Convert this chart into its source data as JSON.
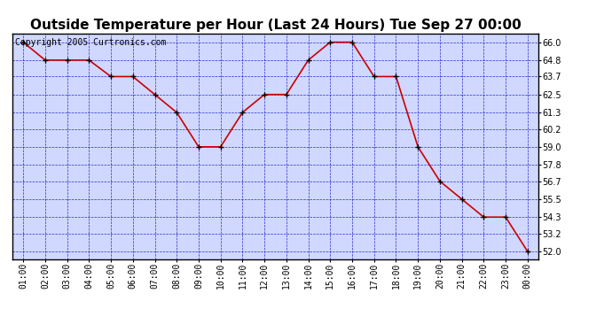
{
  "title": "Outside Temperature per Hour (Last 24 Hours) Tue Sep 27 00:00",
  "copyright": "Copyright 2005 Curtronics.com",
  "x_labels": [
    "01:00",
    "02:00",
    "03:00",
    "04:00",
    "05:00",
    "06:00",
    "07:00",
    "08:00",
    "09:00",
    "10:00",
    "11:00",
    "12:00",
    "13:00",
    "14:00",
    "15:00",
    "16:00",
    "17:00",
    "18:00",
    "19:00",
    "20:00",
    "21:00",
    "22:00",
    "23:00",
    "00:00"
  ],
  "x_values": [
    1,
    2,
    3,
    4,
    5,
    6,
    7,
    8,
    9,
    10,
    11,
    12,
    13,
    14,
    15,
    16,
    17,
    18,
    19,
    20,
    21,
    22,
    23,
    24
  ],
  "y_values": [
    66.0,
    64.8,
    64.8,
    64.8,
    63.7,
    63.7,
    62.5,
    61.3,
    59.0,
    59.0,
    61.3,
    62.5,
    62.5,
    64.8,
    66.0,
    66.0,
    63.7,
    63.7,
    59.0,
    56.7,
    55.5,
    54.3,
    54.3,
    52.0
  ],
  "y_ticks": [
    52.0,
    53.2,
    54.3,
    55.5,
    56.7,
    57.8,
    59.0,
    60.2,
    61.3,
    62.5,
    63.7,
    64.8,
    66.0
  ],
  "ylim": [
    51.5,
    66.6
  ],
  "xlim": [
    0.5,
    24.5
  ],
  "line_color": "#cc0000",
  "marker_color": "#000000",
  "bg_color": "#d0d8ff",
  "fig_bg_color": "#ffffff",
  "grid_color": "#0000bb",
  "border_color": "#000000",
  "title_fontsize": 11,
  "copyright_fontsize": 7,
  "tick_fontsize": 7,
  "line_width": 1.2,
  "marker_size": 4
}
